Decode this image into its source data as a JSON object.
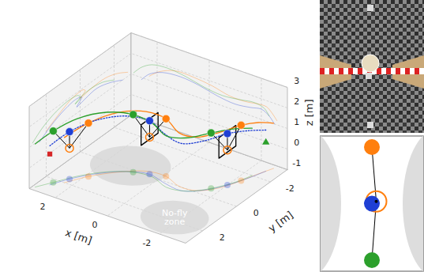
{
  "chart_data": {
    "type": "line3d",
    "xlabel": "x [m]",
    "ylabel": "y [m]",
    "zlabel": "z [m]",
    "xlim": [
      -3,
      3
    ],
    "ylim": [
      -3,
      3
    ],
    "zlim": [
      -1,
      3
    ],
    "xticks": [
      -2,
      0,
      2
    ],
    "yticks": [
      -2,
      0,
      2
    ],
    "zticks": [
      -1,
      0,
      1,
      2,
      3
    ],
    "grid": true,
    "annotations": [
      {
        "text": "No-fly zone",
        "x": -1.8,
        "y": 1.8
      }
    ],
    "no_fly_zones": [
      {
        "x": -1.8,
        "y": 1.8,
        "r": 1.1
      },
      {
        "x": 1.2,
        "y": -0.2,
        "r": 1.3
      }
    ],
    "gates": [
      {
        "center": [
          0.4,
          -0.1,
          1.2
        ],
        "size": 1.0
      },
      {
        "center": [
          -2.0,
          -1.0,
          1.1
        ],
        "size": 1.0
      }
    ],
    "series": [
      {
        "color": "#ff7f0e",
        "line_style": "solid",
        "values": [
          [
            2.3,
            2.0,
            1.2
          ],
          [
            1.9,
            1.2,
            1.6
          ],
          [
            1.3,
            0.4,
            1.9
          ],
          [
            0.6,
            -0.2,
            1.9
          ],
          [
            -0.1,
            -0.3,
            1.8
          ],
          [
            -0.8,
            0.0,
            1.6
          ],
          [
            -1.4,
            -0.1,
            1.6
          ],
          [
            -1.9,
            -0.7,
            1.7
          ],
          [
            -2.2,
            -1.5,
            1.7
          ],
          [
            -2.4,
            -2.2,
            1.5
          ],
          [
            -2.6,
            -2.8,
            1.2
          ]
        ]
      },
      {
        "color": "#1f3fd4",
        "line_style": "dotted",
        "values": [
          [
            2.6,
            2.4,
            0.9
          ],
          [
            2.3,
            1.7,
            1.3
          ],
          [
            1.8,
            0.9,
            1.6
          ],
          [
            1.1,
            0.2,
            1.7
          ],
          [
            0.4,
            -0.1,
            1.6
          ],
          [
            -0.3,
            0.1,
            1.4
          ],
          [
            -1.0,
            0.2,
            1.3
          ],
          [
            -1.6,
            -0.3,
            1.4
          ],
          [
            -2.0,
            -1.0,
            1.5
          ],
          [
            -2.3,
            -1.8,
            1.3
          ],
          [
            -2.5,
            -2.5,
            1.0
          ]
        ]
      },
      {
        "color": "#2ca02c",
        "line_style": "solid",
        "values": [
          [
            2.9,
            2.8,
            1.1
          ],
          [
            2.6,
            2.2,
            1.5
          ],
          [
            2.2,
            1.4,
            1.8
          ],
          [
            1.6,
            0.6,
            1.9
          ],
          [
            0.9,
            0.1,
            1.8
          ],
          [
            0.2,
            0.0,
            1.6
          ],
          [
            -0.5,
            0.3,
            1.5
          ],
          [
            -1.2,
            0.1,
            1.6
          ],
          [
            -1.7,
            -0.5,
            1.7
          ],
          [
            -2.1,
            -1.3,
            1.6
          ],
          [
            -2.3,
            -2.0,
            1.3
          ]
        ]
      }
    ],
    "snapshots": [
      {
        "drones": [
          [
            1.9,
            1.2,
            1.6
          ],
          [
            2.3,
            1.7,
            1.3
          ],
          [
            2.6,
            2.2,
            1.5
          ]
        ],
        "payload": [
          2.3,
          1.7,
          0.5
        ]
      },
      {
        "drones": [
          [
            -0.1,
            -0.3,
            1.8
          ],
          [
            0.4,
            -0.1,
            1.6
          ],
          [
            0.9,
            0.1,
            1.8
          ]
        ],
        "payload": [
          0.4,
          -0.1,
          0.8
        ]
      },
      {
        "drones": [
          [
            -2.2,
            -1.5,
            1.7
          ],
          [
            -2.0,
            -1.0,
            1.5
          ],
          [
            -1.7,
            -0.5,
            1.7
          ]
        ],
        "payload": [
          -2.0,
          -1.0,
          0.7
        ]
      }
    ],
    "start": {
      "point": [
        2.6,
        2.4,
        0.5
      ],
      "color": "#d62728",
      "marker": "square"
    },
    "end": {
      "point": [
        -2.5,
        -2.5,
        0.4
      ],
      "color": "#2ca02c",
      "marker": "triangle"
    },
    "top_view": {
      "drones": [
        [
          0,
          1.3
        ],
        [
          0,
          0
        ],
        [
          0,
          -1.3
        ]
      ],
      "payload": [
        0.1,
        0.05
      ],
      "payload_color": "#ff7f0e"
    }
  }
}
